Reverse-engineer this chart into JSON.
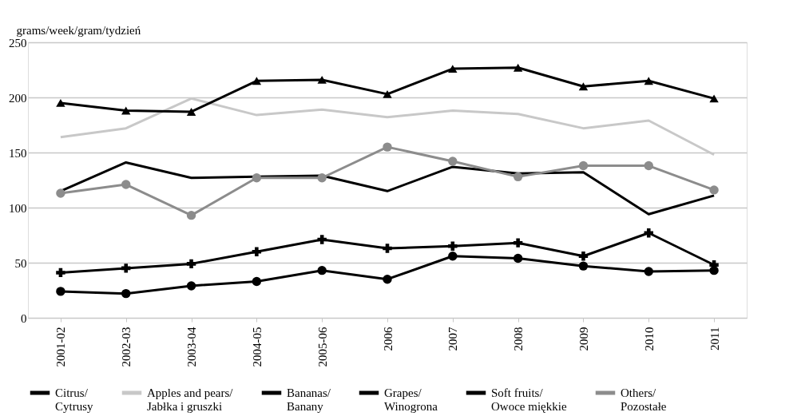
{
  "chart_data": {
    "type": "line",
    "ylabel": "grams/week/gram/tydzień",
    "categories": [
      "2001-02",
      "2002-03",
      "2003-04",
      "2004-05",
      "2005-06",
      "2006",
      "2007",
      "2008",
      "2009",
      "2010",
      "2011"
    ],
    "ylim": [
      0,
      250
    ],
    "yticks": [
      0,
      50,
      100,
      150,
      200,
      250
    ],
    "grid": "y",
    "legend": "bottom",
    "series": [
      {
        "name": "Citrus/ Cytrusy",
        "color": "#000000",
        "marker": "none",
        "values": [
          115,
          141,
          127,
          128,
          129,
          115,
          137,
          131,
          132,
          94,
          111
        ]
      },
      {
        "name": "Apples and pears/ Jabłka i gruszki",
        "color": "#c8c8c8",
        "marker": "none",
        "values": [
          164,
          172,
          199,
          184,
          189,
          182,
          188,
          185,
          172,
          179,
          148
        ]
      },
      {
        "name": "Bananas/ Banany",
        "color": "#000000",
        "marker": "triangle",
        "values": [
          195,
          188,
          187,
          215,
          216,
          203,
          226,
          227,
          210,
          215,
          199
        ]
      },
      {
        "name": "Grapes/ Winogrona",
        "color": "#000000",
        "marker": "cross",
        "values": [
          41,
          45,
          49,
          60,
          71,
          63,
          65,
          68,
          56,
          77,
          48
        ]
      },
      {
        "name": "Soft fruits/ Owoce miękkie",
        "color": "#000000",
        "marker": "circle",
        "values": [
          24,
          22,
          29,
          33,
          43,
          35,
          56,
          54,
          47,
          42,
          43
        ]
      },
      {
        "name": "Others/ Pozostałe",
        "color": "#8c8c8c",
        "marker": "circle",
        "values": [
          113,
          121,
          93,
          127,
          127,
          155,
          142,
          128,
          138,
          138,
          116
        ]
      }
    ]
  }
}
